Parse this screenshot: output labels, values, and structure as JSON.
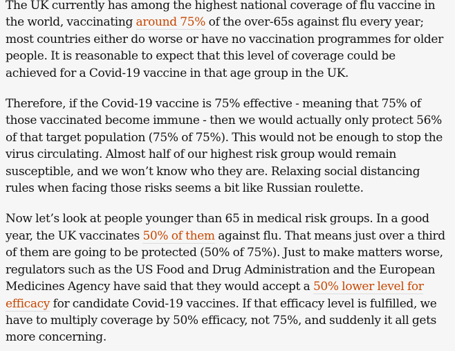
{
  "article": {
    "accent_color": "#c74600",
    "paragraphs": [
      {
        "lines": [
          [
            {
              "t": "The UK currently has among the highest national coverage of flu vaccine in"
            }
          ],
          [
            {
              "t": "the world, vaccinating "
            },
            {
              "t": "around 75%",
              "link": true
            },
            {
              "t": " of the over-65s against flu every year;"
            }
          ],
          [
            {
              "t": "most countries either do worse or have no vaccination programmes for older"
            }
          ],
          [
            {
              "t": "people. It is reasonable to expect that this level of coverage could be"
            }
          ],
          [
            {
              "t": "achieved for a Covid-19 vaccine in that age group in the UK."
            }
          ]
        ]
      },
      {
        "lines": [
          [
            {
              "t": "Therefore, if the Covid-19 vaccine is 75% effective - meaning that 75% of"
            }
          ],
          [
            {
              "t": "those vaccinated become immune - then we would actually only protect 56%"
            }
          ],
          [
            {
              "t": "of that target population (75% of 75%). This would not be enough to stop the"
            }
          ],
          [
            {
              "t": "virus circulating. Almost half of our highest risk group would remain"
            }
          ],
          [
            {
              "t": "susceptible, and we won’t know who they are. Relaxing social distancing"
            }
          ],
          [
            {
              "t": "rules when facing those risks seems a bit like Russian roulette."
            }
          ]
        ]
      },
      {
        "lines": [
          [
            {
              "t": "Now let’s look at people younger than 65 in medical risk groups. In a good"
            }
          ],
          [
            {
              "t": "year, the UK vaccinates "
            },
            {
              "t": "50% of them",
              "link": true
            },
            {
              "t": " against flu. That means just over a third"
            }
          ],
          [
            {
              "t": "of them are going to be protected (50% of 75%). Just to make matters worse,"
            }
          ],
          [
            {
              "t": "regulators such as the US Food and Drug Administration and the European"
            }
          ],
          [
            {
              "t": "Medicines Agency have said that they would accept a "
            },
            {
              "t": "50% lower level for",
              "link": true
            }
          ],
          [
            {
              "t": "efficacy",
              "link": true
            },
            {
              "t": " for candidate Covid-19 vaccines. If that efficacy level is fulfilled, we"
            }
          ],
          [
            {
              "t": "have to multiply coverage by 50% efficacy, not 75%, and suddenly it all gets"
            }
          ],
          [
            {
              "t": "more concerning."
            }
          ]
        ]
      }
    ]
  }
}
